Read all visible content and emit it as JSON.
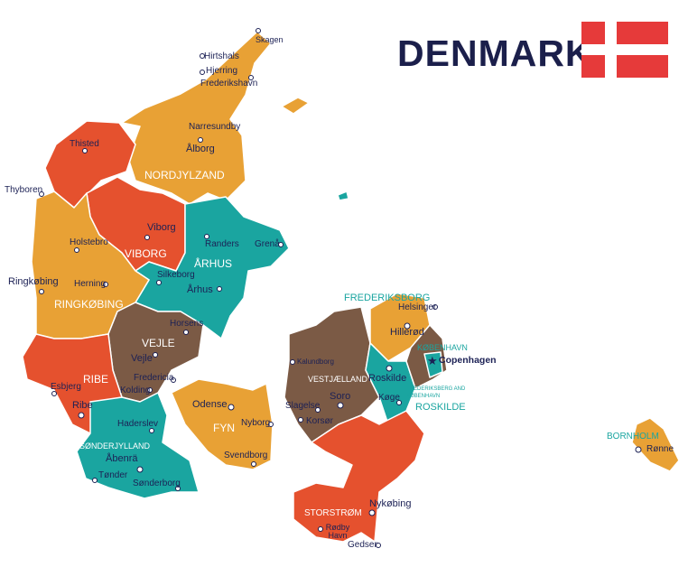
{
  "title": "DENMARK",
  "colors": {
    "orange": "#e8a135",
    "red": "#e5512e",
    "teal": "#1aa5a0",
    "brown": "#7b5a45",
    "text": "#1c2155",
    "flag_red": "#e63a3a"
  },
  "flag_icon": "denmark-flag",
  "regions": {
    "nordjylland": "NORDJYLZAND",
    "viborg": "VIBORG",
    "arhus": "ÅRHUS",
    "ringkobing": "RINGKØBING",
    "vejle": "VEJLE",
    "ribe": "RIBE",
    "sonderjylland": "SØNDERJYLLAND",
    "fyn": "FYN",
    "vestjaelland": "VESTJÆLLAND",
    "frederiksborg": "FREDERIKSBORG",
    "kobenhavn": "KØBENHAVN",
    "frb_kbh": "FREDERIKSBERG AND KØBENHAVN",
    "roskilde": "ROSKILDE",
    "storstrom": "STORSTRØM",
    "bornholm": "BORNHOLM"
  },
  "cities": {
    "skagen": "Skagen",
    "hirtshals": "Hirtshals",
    "hjerring": "Hjerring",
    "frederikshavn": "Frederikshavn",
    "narresundby": "Narresundby",
    "alborg": "Ålborg",
    "thisted": "Thisted",
    "thyboren": "Thyboren",
    "viborg": "Viborg",
    "holstebro": "Holstebro",
    "randers": "Randers",
    "grena": "Grenå",
    "silkeborg": "Silkeborg",
    "arhus": "Århus",
    "ringkobing": "Ringkøbing",
    "herning": "Herning",
    "horsens": "Horsens",
    "vejle": "Vejle",
    "fredericia": "Fredericia",
    "kolding": "Kolding",
    "esbjerg": "Esbjerg",
    "ribe": "Ribe",
    "haderslev": "Haderslev",
    "abenra": "Åbenrä",
    "tonder": "Tønder",
    "sonderborg": "Sønderborg",
    "odense": "Odense",
    "nyborg": "Nyborg",
    "svendborg": "Svendborg",
    "kalundborg": "Kalundborg",
    "slagelse": "Slagelse",
    "korsor": "Korsør",
    "soro": "Soro",
    "roskilde": "Roskilde",
    "koge": "Køge",
    "helsinger": "Helsinger",
    "hillerod": "Hillerød",
    "copenhagen": "Copenhagen",
    "nykobing": "Nykøbing",
    "rodby": "Rødby Havn",
    "gedser": "Gedser",
    "ronne": "Rønne"
  }
}
